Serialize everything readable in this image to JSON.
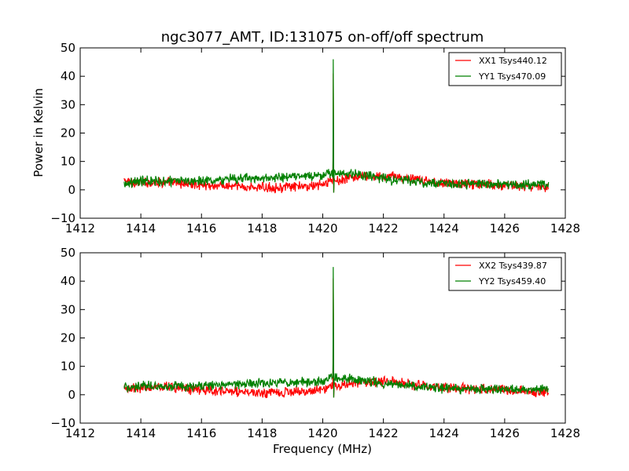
{
  "figure": {
    "title": "ngc3077_AMT, ID:131075 on-off/off spectrum",
    "ylabel": "Power in Kelvin",
    "xlabel": "Frequency (MHz)"
  },
  "chart_data": [
    {
      "type": "line",
      "title": "ngc3077_AMT, ID:131075 on-off/off spectrum",
      "xlabel": "",
      "ylabel": "Power in Kelvin",
      "xlim": [
        1412,
        1428
      ],
      "ylim": [
        -10,
        50
      ],
      "xticks": [
        1412,
        1414,
        1416,
        1418,
        1420,
        1422,
        1424,
        1426,
        1428
      ],
      "yticks": [
        -10,
        0,
        10,
        20,
        30,
        40,
        50
      ],
      "grid": false,
      "legend_position": "top-right",
      "series": [
        {
          "name": "XX1 Tsys440.12",
          "color": "#ff0000",
          "x": [
            1413.45,
            1414.0,
            1414.5,
            1415.0,
            1415.5,
            1416.0,
            1416.5,
            1417.0,
            1417.5,
            1418.0,
            1418.5,
            1419.0,
            1419.5,
            1420.0,
            1420.2,
            1420.3,
            1420.35,
            1420.4,
            1420.5,
            1421.0,
            1421.5,
            1422.0,
            1422.3,
            1422.5,
            1423.0,
            1423.5,
            1424.0,
            1424.5,
            1425.0,
            1425.5,
            1426.0,
            1426.5,
            1427.0,
            1427.45
          ],
          "values": [
            3,
            2.5,
            2.8,
            2.5,
            2.2,
            1.8,
            1.5,
            1.2,
            1.0,
            0.8,
            0.8,
            1.0,
            1.2,
            2.0,
            2.8,
            3.5,
            41,
            3.5,
            3.2,
            4.5,
            4.5,
            4.5,
            5.0,
            4.5,
            3.5,
            3.0,
            2.5,
            2.2,
            2.0,
            2.0,
            1.5,
            1.5,
            1.0,
            1.0
          ]
        },
        {
          "name": "YY1 Tsys470.09",
          "color": "#008000",
          "x": [
            1413.45,
            1414.0,
            1414.5,
            1415.0,
            1415.5,
            1416.0,
            1416.5,
            1417.0,
            1417.5,
            1418.0,
            1418.5,
            1419.0,
            1419.5,
            1420.0,
            1420.2,
            1420.3,
            1420.35,
            1420.4,
            1420.5,
            1421.0,
            1421.5,
            1422.0,
            1422.3,
            1422.5,
            1423.0,
            1423.5,
            1424.0,
            1424.5,
            1425.0,
            1425.5,
            1426.0,
            1426.5,
            1427.0,
            1427.45
          ],
          "values": [
            2.5,
            3.0,
            3.2,
            3.0,
            3.2,
            3.5,
            3.5,
            4.0,
            4.0,
            4.0,
            4.2,
            4.5,
            4.8,
            5.0,
            5.5,
            6.0,
            46,
            6.0,
            5.5,
            5.5,
            5.0,
            4.0,
            3.5,
            3.5,
            3.0,
            2.5,
            2.2,
            2.0,
            2.0,
            2.0,
            2.0,
            1.8,
            2.0,
            2.0
          ]
        }
      ]
    },
    {
      "type": "line",
      "title": "",
      "xlabel": "Frequency (MHz)",
      "ylabel": "",
      "xlim": [
        1412,
        1428
      ],
      "ylim": [
        -10,
        50
      ],
      "xticks": [
        1412,
        1414,
        1416,
        1418,
        1420,
        1422,
        1424,
        1426,
        1428
      ],
      "yticks": [
        -10,
        0,
        10,
        20,
        30,
        40,
        50
      ],
      "grid": false,
      "legend_position": "top-right",
      "series": [
        {
          "name": "XX2 Tsys439.87",
          "color": "#ff0000",
          "x": [
            1413.45,
            1414.0,
            1414.5,
            1415.0,
            1415.5,
            1416.0,
            1416.5,
            1417.0,
            1417.5,
            1418.0,
            1418.5,
            1419.0,
            1419.5,
            1420.0,
            1420.2,
            1420.3,
            1420.35,
            1420.4,
            1420.5,
            1421.0,
            1421.5,
            1422.0,
            1422.3,
            1422.5,
            1423.0,
            1423.5,
            1424.0,
            1424.5,
            1425.0,
            1425.5,
            1426.0,
            1426.5,
            1427.0,
            1427.45
          ],
          "values": [
            2.5,
            2.5,
            2.8,
            2.5,
            2.0,
            1.8,
            1.5,
            1.2,
            1.0,
            0.8,
            0.8,
            1.0,
            1.2,
            2.0,
            2.8,
            3.5,
            41,
            3.5,
            3.2,
            4.5,
            4.5,
            4.5,
            5.0,
            4.5,
            3.5,
            3.0,
            2.5,
            2.2,
            2.0,
            2.0,
            1.5,
            1.5,
            1.0,
            1.0
          ]
        },
        {
          "name": "YY2 Tsys459.40",
          "color": "#008000",
          "x": [
            1413.45,
            1414.0,
            1414.5,
            1415.0,
            1415.5,
            1416.0,
            1416.5,
            1417.0,
            1417.5,
            1418.0,
            1418.5,
            1419.0,
            1419.5,
            1420.0,
            1420.2,
            1420.3,
            1420.35,
            1420.4,
            1420.5,
            1421.0,
            1421.5,
            1422.0,
            1422.3,
            1422.5,
            1423.0,
            1423.5,
            1424.0,
            1424.5,
            1425.0,
            1425.5,
            1426.0,
            1426.5,
            1427.0,
            1427.45
          ],
          "values": [
            2.5,
            3.0,
            3.0,
            3.0,
            3.0,
            3.2,
            3.5,
            3.8,
            3.8,
            4.0,
            4.0,
            4.2,
            4.5,
            5.0,
            5.5,
            6.0,
            45,
            6.0,
            5.5,
            5.5,
            5.0,
            4.0,
            3.5,
            3.5,
            3.0,
            2.5,
            2.2,
            2.0,
            2.0,
            2.0,
            2.0,
            1.8,
            2.0,
            2.0
          ]
        }
      ]
    }
  ]
}
